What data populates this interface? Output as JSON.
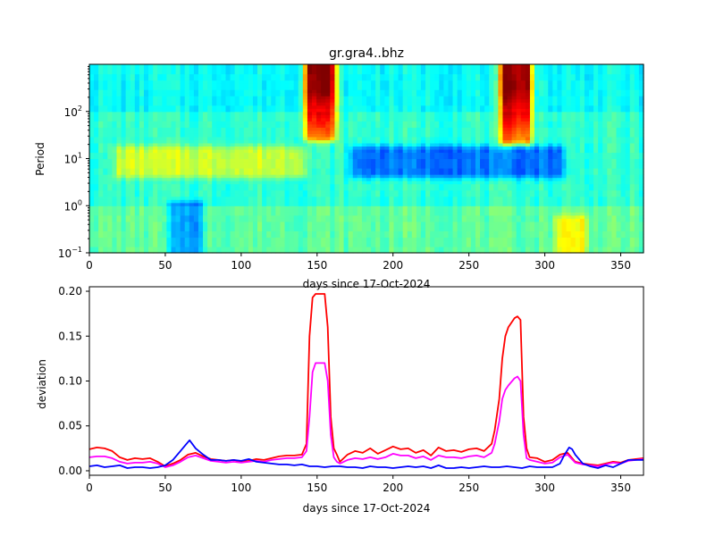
{
  "chart_data": [
    {
      "type": "heatmap",
      "title": "gr.gra4..bhz",
      "xlabel": "days since 17-Oct-2024",
      "ylabel": "Period",
      "xlim": [
        0,
        365
      ],
      "ylim": [
        0.1,
        1000
      ],
      "yscale": "log",
      "x_ticks": [
        "0",
        "50",
        "100",
        "150",
        "200",
        "250",
        "300",
        "350"
      ],
      "y_ticks": [
        {
          "base": "10",
          "exp": "−1",
          "value": 0.1
        },
        {
          "base": "10",
          "exp": "0",
          "value": 1
        },
        {
          "base": "10",
          "exp": "1",
          "value": 10
        },
        {
          "base": "10",
          "exp": "2",
          "value": 100
        }
      ],
      "colormap": "jet",
      "features": [
        {
          "x_range": [
            145,
            159
          ],
          "period_range": [
            30,
            1000
          ],
          "level": "high"
        },
        {
          "x_range": [
            274,
            288
          ],
          "period_range": [
            25,
            1000
          ],
          "level": "high"
        },
        {
          "x_range": [
            20,
            140
          ],
          "period_range": [
            5,
            15
          ],
          "level": "moderate-high"
        },
        {
          "x_range": [
            175,
            310
          ],
          "period_range": [
            5,
            15
          ],
          "level": "low"
        },
        {
          "x_range": [
            55,
            72
          ],
          "period_range": [
            0.1,
            1
          ],
          "level": "low"
        },
        {
          "x_range": [
            310,
            325
          ],
          "period_range": [
            0.1,
            0.5
          ],
          "level": "moderate-high"
        }
      ]
    },
    {
      "type": "line",
      "xlabel": "days since 17-Oct-2024",
      "ylabel": "deviation",
      "xlim": [
        0,
        365
      ],
      "ylim": [
        -0.005,
        0.205
      ],
      "x_ticks": [
        "0",
        "50",
        "100",
        "150",
        "200",
        "250",
        "300",
        "350"
      ],
      "y_ticks": [
        "0.00",
        "0.05",
        "0.10",
        "0.15",
        "0.20"
      ],
      "series": [
        {
          "color": "#ff0000",
          "x": [
            0,
            5,
            10,
            15,
            20,
            25,
            30,
            35,
            40,
            45,
            50,
            55,
            60,
            65,
            70,
            75,
            80,
            85,
            90,
            95,
            100,
            105,
            110,
            115,
            120,
            125,
            130,
            135,
            140,
            143,
            145,
            147,
            149,
            151,
            155,
            157,
            159,
            161,
            163,
            165,
            170,
            175,
            180,
            185,
            190,
            195,
            200,
            205,
            210,
            215,
            220,
            225,
            230,
            235,
            240,
            245,
            250,
            255,
            260,
            265,
            267,
            270,
            272,
            274,
            276,
            280,
            282,
            284,
            286,
            288,
            290,
            295,
            300,
            305,
            310,
            315,
            320,
            325,
            330,
            335,
            340,
            345,
            350,
            355,
            360,
            365
          ],
          "y": [
            0.024,
            0.026,
            0.025,
            0.022,
            0.015,
            0.012,
            0.014,
            0.013,
            0.014,
            0.01,
            0.005,
            0.008,
            0.012,
            0.018,
            0.02,
            0.016,
            0.013,
            0.012,
            0.011,
            0.012,
            0.01,
            0.011,
            0.013,
            0.012,
            0.014,
            0.016,
            0.017,
            0.017,
            0.018,
            0.03,
            0.15,
            0.193,
            0.197,
            0.197,
            0.197,
            0.16,
            0.06,
            0.025,
            0.018,
            0.01,
            0.018,
            0.022,
            0.02,
            0.025,
            0.019,
            0.023,
            0.027,
            0.024,
            0.025,
            0.02,
            0.023,
            0.017,
            0.026,
            0.022,
            0.023,
            0.021,
            0.024,
            0.025,
            0.022,
            0.03,
            0.045,
            0.08,
            0.125,
            0.15,
            0.16,
            0.17,
            0.172,
            0.168,
            0.06,
            0.025,
            0.015,
            0.014,
            0.01,
            0.012,
            0.018,
            0.02,
            0.01,
            0.008,
            0.007,
            0.006,
            0.008,
            0.01,
            0.009,
            0.012,
            0.013,
            0.014
          ]
        },
        {
          "color": "#ff00ff",
          "x": [
            0,
            5,
            10,
            15,
            20,
            25,
            30,
            35,
            40,
            45,
            50,
            55,
            60,
            65,
            70,
            75,
            80,
            85,
            90,
            95,
            100,
            105,
            110,
            115,
            120,
            125,
            130,
            135,
            140,
            143,
            145,
            147,
            149,
            151,
            155,
            157,
            159,
            161,
            163,
            165,
            170,
            175,
            180,
            185,
            190,
            195,
            200,
            205,
            210,
            215,
            220,
            225,
            230,
            235,
            240,
            245,
            250,
            255,
            260,
            265,
            267,
            270,
            272,
            274,
            276,
            280,
            282,
            284,
            286,
            288,
            290,
            295,
            300,
            305,
            310,
            315,
            320,
            325,
            330,
            335,
            340,
            345,
            350,
            355,
            360,
            365
          ],
          "y": [
            0.015,
            0.016,
            0.016,
            0.014,
            0.01,
            0.008,
            0.009,
            0.009,
            0.01,
            0.008,
            0.004,
            0.006,
            0.01,
            0.015,
            0.017,
            0.014,
            0.011,
            0.01,
            0.009,
            0.01,
            0.009,
            0.01,
            0.011,
            0.01,
            0.012,
            0.013,
            0.014,
            0.014,
            0.015,
            0.022,
            0.06,
            0.11,
            0.12,
            0.12,
            0.12,
            0.1,
            0.04,
            0.015,
            0.01,
            0.008,
            0.012,
            0.014,
            0.013,
            0.015,
            0.013,
            0.015,
            0.019,
            0.017,
            0.017,
            0.014,
            0.016,
            0.012,
            0.017,
            0.015,
            0.015,
            0.014,
            0.016,
            0.017,
            0.015,
            0.02,
            0.03,
            0.055,
            0.08,
            0.09,
            0.095,
            0.103,
            0.105,
            0.1,
            0.04,
            0.014,
            0.012,
            0.01,
            0.008,
            0.009,
            0.015,
            0.018,
            0.009,
            0.007,
            0.006,
            0.005,
            0.007,
            0.009,
            0.008,
            0.011,
            0.012,
            0.013
          ]
        },
        {
          "color": "#0000ff",
          "x": [
            0,
            5,
            10,
            15,
            20,
            25,
            30,
            35,
            40,
            45,
            50,
            55,
            60,
            63,
            66,
            70,
            75,
            80,
            85,
            90,
            95,
            100,
            105,
            110,
            115,
            120,
            125,
            130,
            135,
            140,
            145,
            150,
            155,
            160,
            165,
            170,
            175,
            180,
            185,
            190,
            195,
            200,
            205,
            210,
            215,
            220,
            225,
            230,
            235,
            240,
            245,
            250,
            255,
            260,
            265,
            270,
            275,
            280,
            285,
            290,
            295,
            300,
            305,
            310,
            313,
            316,
            318,
            320,
            325,
            330,
            335,
            340,
            345,
            350,
            355,
            360,
            365
          ],
          "y": [
            0.005,
            0.006,
            0.004,
            0.005,
            0.006,
            0.003,
            0.004,
            0.004,
            0.003,
            0.004,
            0.006,
            0.012,
            0.022,
            0.028,
            0.034,
            0.025,
            0.018,
            0.012,
            0.012,
            0.011,
            0.012,
            0.011,
            0.013,
            0.01,
            0.009,
            0.008,
            0.007,
            0.007,
            0.006,
            0.007,
            0.005,
            0.005,
            0.004,
            0.005,
            0.005,
            0.004,
            0.004,
            0.003,
            0.005,
            0.004,
            0.004,
            0.003,
            0.004,
            0.005,
            0.004,
            0.005,
            0.003,
            0.006,
            0.003,
            0.003,
            0.004,
            0.003,
            0.004,
            0.005,
            0.004,
            0.004,
            0.005,
            0.004,
            0.003,
            0.005,
            0.004,
            0.004,
            0.004,
            0.008,
            0.018,
            0.026,
            0.024,
            0.018,
            0.008,
            0.005,
            0.003,
            0.006,
            0.004,
            0.008,
            0.012,
            0.012,
            0.012
          ]
        }
      ]
    }
  ]
}
